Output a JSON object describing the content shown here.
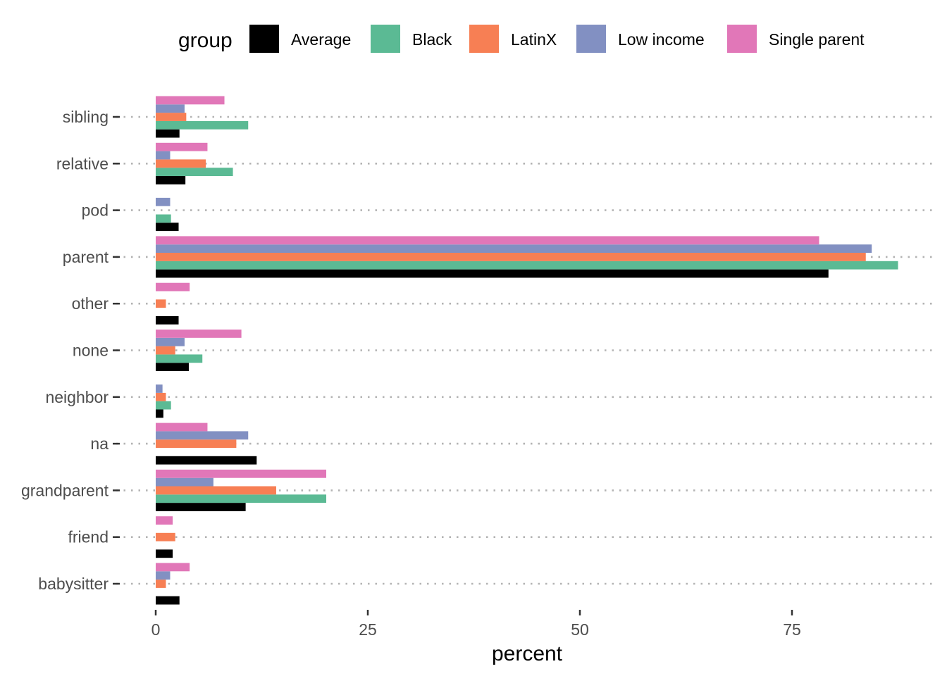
{
  "chart_data": {
    "type": "bar",
    "orientation": "horizontal",
    "categories": [
      "babysitter",
      "friend",
      "grandparent",
      "na",
      "neighbor",
      "none",
      "other",
      "parent",
      "pod",
      "relative",
      "sibling"
    ],
    "series": [
      {
        "name": "Average",
        "color": "#000000",
        "values": [
          2.8,
          2.0,
          10.6,
          11.9,
          0.9,
          3.9,
          2.7,
          79.3,
          2.7,
          3.5,
          2.8
        ]
      },
      {
        "name": "Black",
        "color": "#5BBA94",
        "values": [
          0,
          0,
          20.1,
          0,
          1.8,
          5.5,
          0,
          87.5,
          1.8,
          9.1,
          10.9
        ]
      },
      {
        "name": "LatinX",
        "color": "#F77F54",
        "values": [
          1.2,
          2.3,
          14.2,
          9.5,
          1.2,
          2.3,
          1.2,
          83.7,
          0,
          5.9,
          3.6
        ]
      },
      {
        "name": "Low income",
        "color": "#8290C2",
        "values": [
          1.7,
          0,
          6.8,
          10.9,
          0.8,
          3.4,
          0,
          84.4,
          1.7,
          1.7,
          3.4
        ]
      },
      {
        "name": "Single parent",
        "color": "#E177B8",
        "values": [
          4.0,
          2.0,
          20.1,
          6.1,
          0,
          10.1,
          4.0,
          78.2,
          0,
          6.1,
          8.1
        ]
      }
    ],
    "xlabel": "percent",
    "ylabel": "",
    "xlim": [
      0,
      88
    ],
    "xticks": [
      0,
      25,
      50,
      75
    ],
    "grid": "dotted horizontal lines at categories",
    "legend": {
      "title": "group",
      "position": "top"
    }
  }
}
